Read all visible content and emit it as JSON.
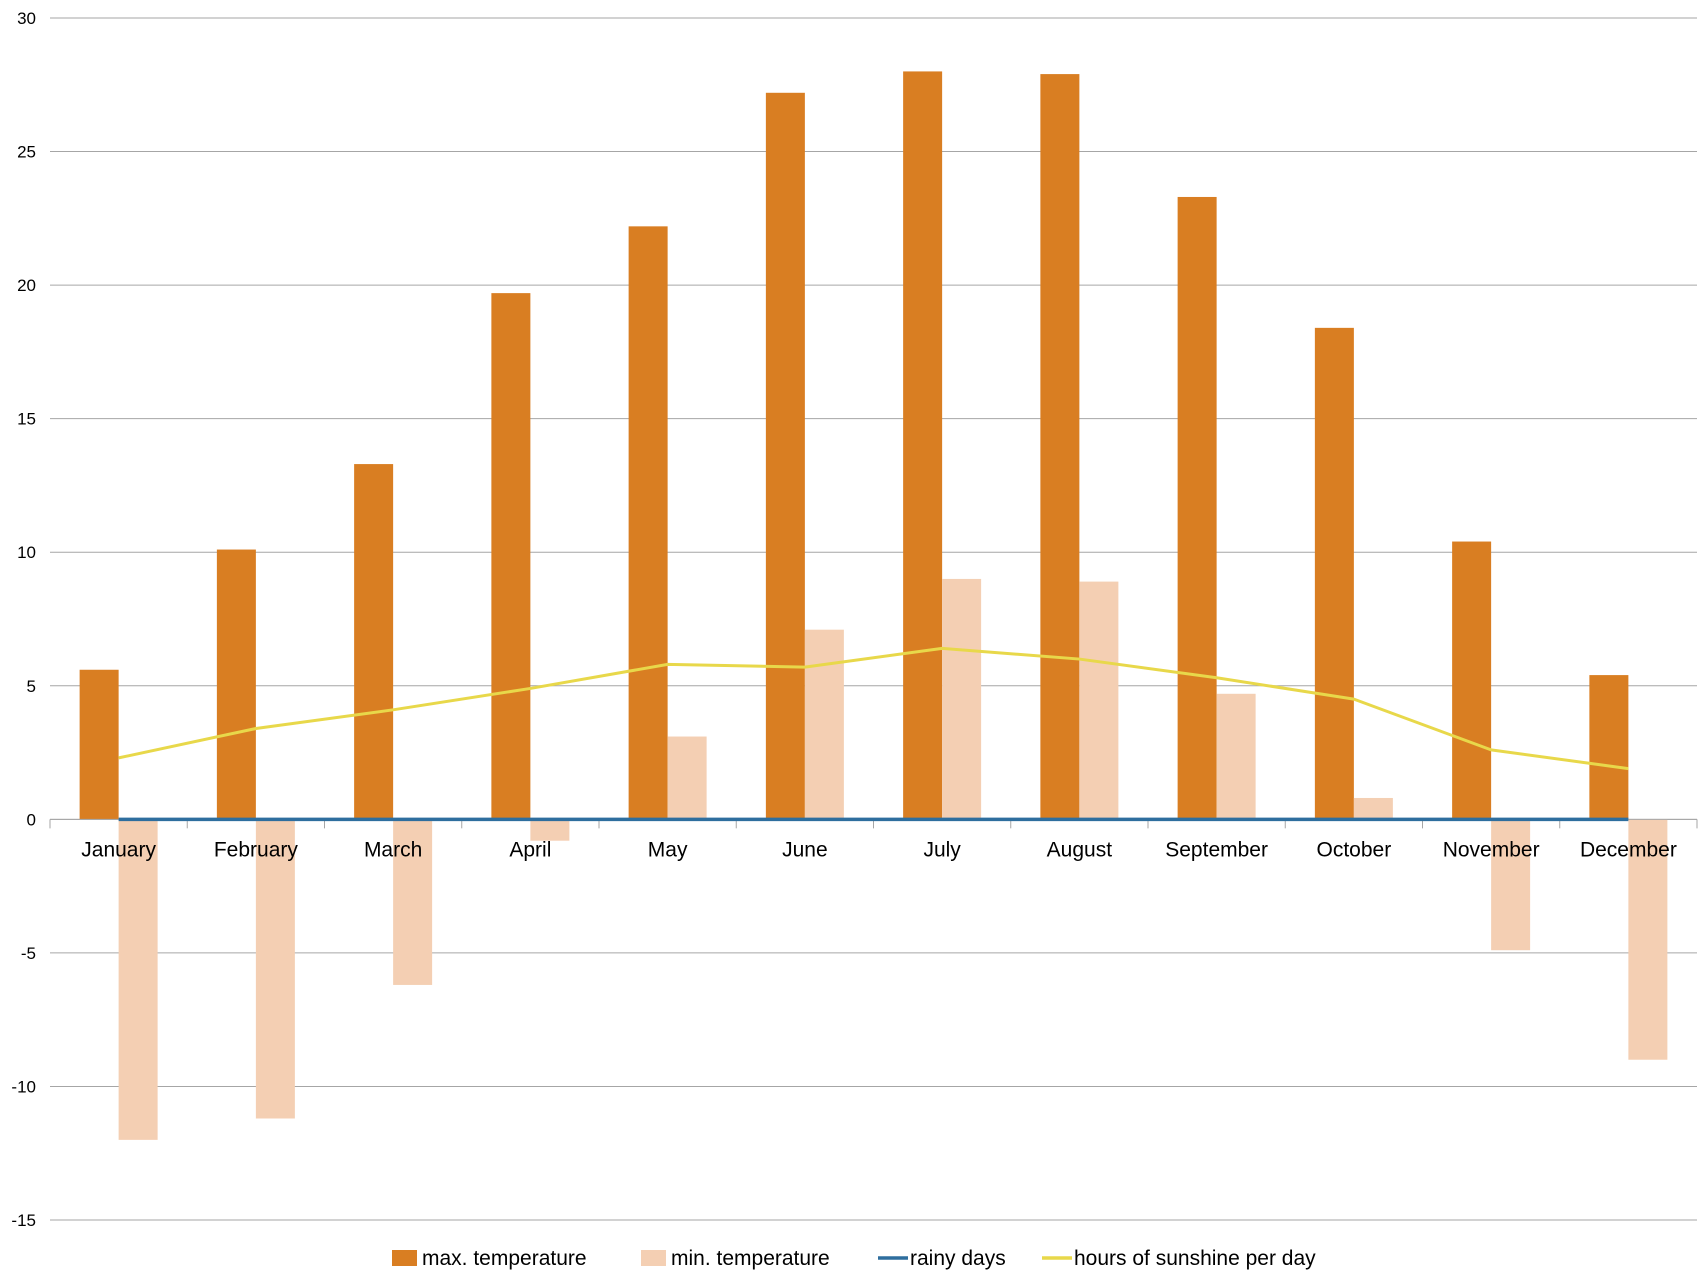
{
  "chart_data": {
    "type": "bar",
    "categories": [
      "January",
      "February",
      "March",
      "April",
      "May",
      "June",
      "July",
      "August",
      "September",
      "October",
      "November",
      "December"
    ],
    "series": [
      {
        "name": "max.  temperature",
        "kind": "bar",
        "color": "#d97e22",
        "values": [
          5.6,
          10.1,
          13.3,
          19.7,
          22.2,
          27.2,
          28.0,
          27.9,
          23.3,
          18.4,
          10.4,
          5.4
        ]
      },
      {
        "name": "min. temperature",
        "kind": "bar",
        "color": "#f4cfb3",
        "values": [
          -12.0,
          -11.2,
          -6.2,
          -0.8,
          3.1,
          7.1,
          9.0,
          8.9,
          4.7,
          0.8,
          -4.9,
          -9.0
        ]
      },
      {
        "name": "rainy days",
        "kind": "line",
        "color": "#2e6e9e",
        "values": [
          0,
          0,
          0,
          0,
          0,
          0,
          0,
          0,
          0,
          0,
          0,
          0
        ]
      },
      {
        "name": "hours of sunshine per day",
        "kind": "line",
        "color": "#e8d84a",
        "values": [
          2.3,
          3.4,
          4.1,
          4.9,
          5.8,
          5.7,
          6.4,
          6.0,
          5.3,
          4.5,
          2.6,
          1.9
        ]
      }
    ],
    "ylim": [
      -15,
      30
    ],
    "yticks": [
      30,
      25,
      20,
      15,
      10,
      5,
      0,
      -5,
      -10,
      -15
    ],
    "grid": true,
    "legend_position": "bottom"
  }
}
